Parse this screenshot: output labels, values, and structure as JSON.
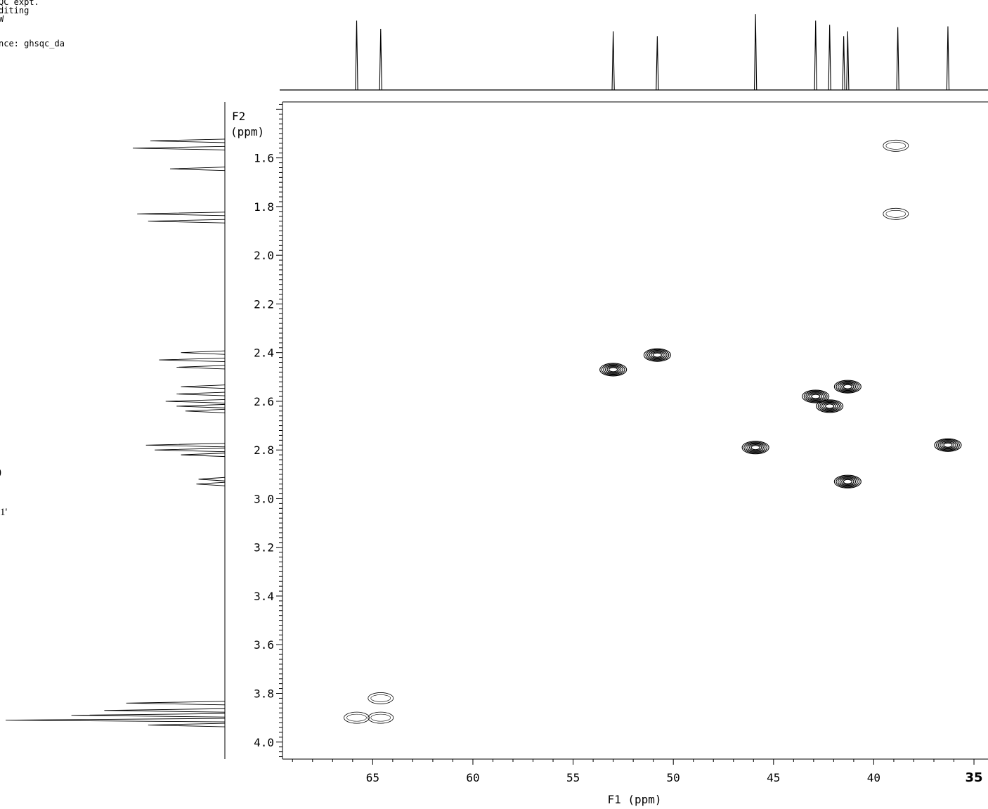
{
  "header": {
    "line1": "QC expt.",
    "line2": "diting",
    "line3": "W",
    "line4": "nce: ghsqc_da"
  },
  "side_notes": {
    "note1": ")",
    "note2": "1'"
  },
  "chart_data": {
    "type": "heatmap",
    "subtype": "2D HSQC contour plot",
    "xlabel": "F1 (ppm)",
    "ylabel_line1": "F2",
    "ylabel_line2": "(ppm)",
    "xlim": [
      69.5,
      34.3
    ],
    "ylim": [
      1.37,
      4.07
    ],
    "x_ticks": [
      {
        "value": 65,
        "label": "65"
      },
      {
        "value": 60,
        "label": "60"
      },
      {
        "value": 55,
        "label": "55"
      },
      {
        "value": 50,
        "label": "50"
      },
      {
        "value": 45,
        "label": "45"
      },
      {
        "value": 40,
        "label": "40"
      },
      {
        "value": 35,
        "label": "35"
      }
    ],
    "y_ticks": [
      {
        "value": 1.6,
        "label": "1.6"
      },
      {
        "value": 1.8,
        "label": "1.8"
      },
      {
        "value": 2.0,
        "label": "2.0"
      },
      {
        "value": 2.2,
        "label": "2.2"
      },
      {
        "value": 2.4,
        "label": "2.4"
      },
      {
        "value": 2.6,
        "label": "2.6"
      },
      {
        "value": 2.8,
        "label": "2.8"
      },
      {
        "value": 3.0,
        "label": "3.0"
      },
      {
        "value": 3.2,
        "label": "3.2"
      },
      {
        "value": 3.4,
        "label": "3.4"
      },
      {
        "value": 3.6,
        "label": "3.6"
      },
      {
        "value": 3.8,
        "label": "3.8"
      },
      {
        "value": 4.0,
        "label": "4.0"
      }
    ],
    "carbon_peaks_ppm": [
      65.8,
      64.6,
      53.0,
      50.8,
      45.9,
      42.9,
      42.2,
      41.5,
      41.3,
      38.8,
      36.3
    ],
    "carbon_peak_heights": [
      0.85,
      0.75,
      0.72,
      0.66,
      0.93,
      0.85,
      0.8,
      0.66,
      0.72,
      0.77,
      0.78
    ],
    "cross_peaks": [
      {
        "x": 38.9,
        "y": 1.55,
        "phase": "negative"
      },
      {
        "x": 38.9,
        "y": 1.83,
        "phase": "negative"
      },
      {
        "x": 53.0,
        "y": 2.47,
        "phase": "positive"
      },
      {
        "x": 50.8,
        "y": 2.41,
        "phase": "positive"
      },
      {
        "x": 41.3,
        "y": 2.54,
        "phase": "positive"
      },
      {
        "x": 42.9,
        "y": 2.58,
        "phase": "positive"
      },
      {
        "x": 42.2,
        "y": 2.62,
        "phase": "positive"
      },
      {
        "x": 45.9,
        "y": 2.79,
        "phase": "positive"
      },
      {
        "x": 36.3,
        "y": 2.78,
        "phase": "positive"
      },
      {
        "x": 41.3,
        "y": 2.93,
        "phase": "positive"
      },
      {
        "x": 64.6,
        "y": 3.82,
        "phase": "negative"
      },
      {
        "x": 65.8,
        "y": 3.9,
        "phase": "negative"
      },
      {
        "x": 64.6,
        "y": 3.9,
        "phase": "negative"
      }
    ],
    "proton_peaks_ppm": [
      {
        "shift": 1.53,
        "height": 0.34
      },
      {
        "shift": 1.56,
        "height": 0.42
      },
      {
        "shift": 1.645,
        "height": 0.25
      },
      {
        "shift": 1.83,
        "height": 0.4
      },
      {
        "shift": 1.86,
        "height": 0.35
      },
      {
        "shift": 2.4,
        "height": 0.2
      },
      {
        "shift": 2.43,
        "height": 0.3
      },
      {
        "shift": 2.46,
        "height": 0.22
      },
      {
        "shift": 2.54,
        "height": 0.2
      },
      {
        "shift": 2.57,
        "height": 0.22
      },
      {
        "shift": 2.6,
        "height": 0.27
      },
      {
        "shift": 2.62,
        "height": 0.22
      },
      {
        "shift": 2.64,
        "height": 0.18
      },
      {
        "shift": 2.78,
        "height": 0.36
      },
      {
        "shift": 2.8,
        "height": 0.32
      },
      {
        "shift": 2.82,
        "height": 0.2
      },
      {
        "shift": 2.92,
        "height": 0.12
      },
      {
        "shift": 2.94,
        "height": 0.13
      },
      {
        "shift": 3.84,
        "height": 0.45
      },
      {
        "shift": 3.87,
        "height": 0.55
      },
      {
        "shift": 3.89,
        "height": 0.7
      },
      {
        "shift": 3.91,
        "height": 1.0
      },
      {
        "shift": 3.93,
        "height": 0.35
      }
    ]
  }
}
